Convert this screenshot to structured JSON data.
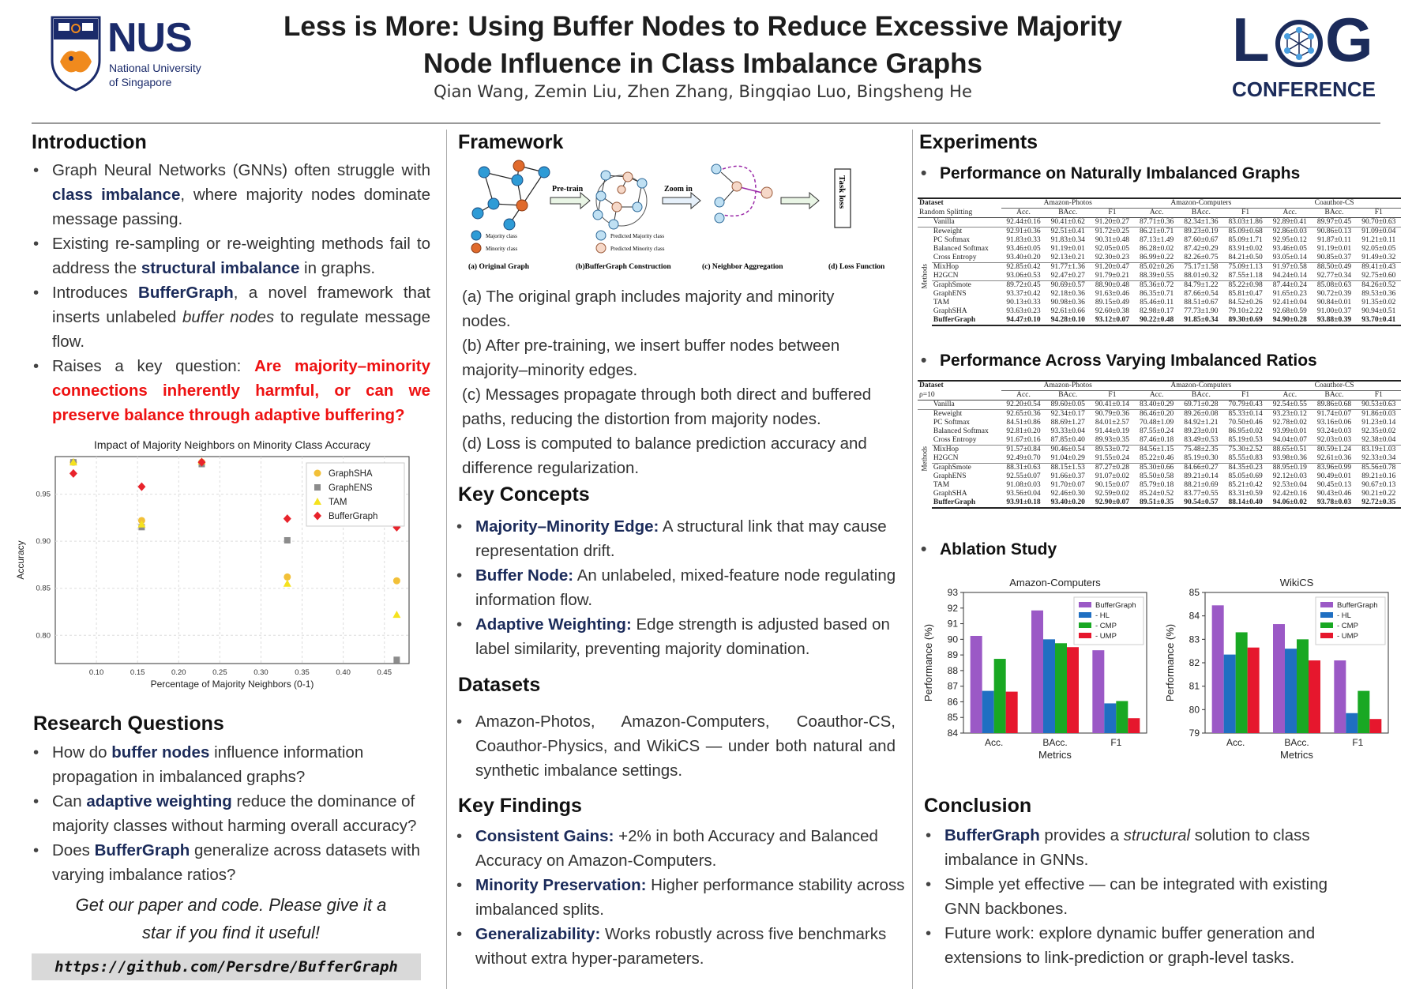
{
  "header": {
    "logo_left": {
      "acronym": "NUS",
      "line1": "National University",
      "line2": "of Singapore"
    },
    "title_line1": "Less is More: Using Buffer Nodes to Reduce Excessive Majority",
    "title_line2": "Node Influence in Class Imbalance Graphs",
    "authors": "Qian Wang, Zemin Liu, Zhen Zhang, Bingqiao Luo, Bingsheng He",
    "logo_right": {
      "text1": "L",
      "text2": "G",
      "sub": "CONFERENCE"
    }
  },
  "intro": {
    "heading": "Introduction",
    "b1_pre": "Graph Neural Networks (GNNs) often struggle with ",
    "b1_bold": "class imbalance",
    "b1_post": ", where majority nodes dominate message passing.",
    "b2_pre": "Existing re-sampling or re-weighting methods fail to address the ",
    "b2_bold": "structural imbalance",
    "b2_post": " in graphs.",
    "b3_pre": "Introduces ",
    "b3_bold": "BufferGraph",
    "b3_mid": ", a novel framework that inserts unlabeled ",
    "b3_ital": "buffer nodes",
    "b3_post": " to regulate message flow.",
    "b4_pre": "Raises a key question: ",
    "b4_red": "Are majority–minority connections inherently harmful, or can we preserve balance through adaptive buffering?"
  },
  "scatter_chart": {
    "chart_data": {
      "type": "scatter",
      "title": "Impact of Majority Neighbors on Minority Class Accuracy",
      "xlabel": "Percentage of Majority Neighbors (0-1)",
      "ylabel": "Accuracy",
      "xlim": [
        0.05,
        0.48
      ],
      "ylim": [
        0.77,
        0.99
      ],
      "xticks": [
        "0.10",
        "0.15",
        "0.20",
        "0.25",
        "0.30",
        "0.35",
        "0.40",
        "0.45"
      ],
      "yticks": [
        "0.80",
        "0.85",
        "0.90",
        "0.95"
      ],
      "x": [
        0.072,
        0.155,
        0.228,
        0.332,
        0.465
      ],
      "series": [
        {
          "name": "GraphSHA",
          "color": "#f2c038",
          "marker": "circle",
          "values": [
            0.984,
            0.922,
            0.984,
            0.862,
            0.858
          ]
        },
        {
          "name": "GraphENS",
          "color": "#8c8c8c",
          "marker": "square",
          "values": [
            0.984,
            0.915,
            0.982,
            0.901,
            0.774
          ]
        },
        {
          "name": "TAM",
          "color": "#f5e21e",
          "marker": "triangle",
          "values": [
            0.984,
            0.918,
            0.985,
            0.855,
            0.822
          ]
        },
        {
          "name": "BufferGraph",
          "color": "#e8232b",
          "marker": "diamond",
          "values": [
            0.972,
            0.958,
            0.984,
            0.924,
            0.915
          ]
        }
      ]
    }
  },
  "rq": {
    "heading": "Research Questions",
    "q1_pre": "How do ",
    "q1_bold": "buffer nodes",
    "q1_post": " influence information propagation in imbalanced graphs?",
    "q2_pre": "Can ",
    "q2_bold": "adaptive weighting",
    "q2_post": " reduce the dominance of majority classes without harming overall accuracy?",
    "q3_pre": "Does ",
    "q3_bold": "BufferGraph",
    "q3_post": " generalize across datasets with varying imbalance ratios?",
    "cta_line1": "Get our paper and code. Please give it a",
    "cta_line2": "star if you find it useful!",
    "url": "https://github.com/Persdre/BufferGraph"
  },
  "framework": {
    "heading": "Framework",
    "fig": {
      "pretrain": "Pre-train",
      "zoomin": "Zoom in",
      "taskloss": "Task loss",
      "legend_maj": "Majority class",
      "legend_min": "Minority class",
      "legend_pmaj": "Predicted Majority class",
      "legend_pmin": "Predicted Minority class",
      "cap_a": "(a) Original Graph",
      "cap_b": "(b)BufferGraph Construction",
      "cap_c": "(c) Neighbor Aggregation",
      "cap_d": "(d) Loss Function"
    },
    "pa": "(a) The original graph includes majority and minority nodes.",
    "pb": "(b) After pre-training, we insert buffer nodes between majority–minority edges.",
    "pc": "(c) Messages propagate through both direct and buffered paths, reducing the distortion from majority nodes.",
    "pd": "(d) Loss is computed to balance prediction accuracy and difference regularization."
  },
  "concepts": {
    "heading": "Key Concepts",
    "c1_bold": "Majority–Minority Edge:",
    "c1_text": " A structural link that may cause representation drift.",
    "c2_bold": "Buffer Node:",
    "c2_text": " An unlabeled, mixed-feature node regulating information flow.",
    "c3_bold": "Adaptive Weighting:",
    "c3_text": " Edge strength is adjusted based on label similarity, preventing majority domination."
  },
  "datasets": {
    "heading": "Datasets",
    "text": "Amazon-Photos, Amazon-Computers, Coauthor-CS, Coauthor-Physics, and WikiCS — under both natural and synthetic imbalance settings."
  },
  "findings": {
    "heading": "Key Findings",
    "f1_bold": "Consistent Gains:",
    "f1_text": " +2% in both Accuracy and Balanced Accuracy on Amazon-Computers.",
    "f2_bold": "Minority Preservation:",
    "f2_text": " Higher performance stability across imbalanced splits.",
    "f3_bold": "Generalizability:",
    "f3_text": " Works robustly across five benchmarks without extra hyper-parameters."
  },
  "experiments": {
    "heading": "Experiments",
    "sub1": "Performance on Naturally Imbalanced Graphs",
    "sub2": "Performance Across Varying Imbalanced Ratios",
    "sub3": "Ablation Study",
    "methods_label": "Methods",
    "table1": {
      "h_dataset": "Dataset",
      "h_setting": "Random Splitting",
      "datasets": [
        "Amazon-Photos",
        "Amazon-Computers",
        "Coauthor-CS"
      ],
      "metrics": [
        "Acc.",
        "BAcc.",
        "F1",
        "Acc.",
        "BAcc.",
        "F1",
        "Acc.",
        "BAcc.",
        "F1"
      ],
      "rows": [
        [
          "Vanilla",
          "92.44±0.16",
          "90.41±0.62",
          "91.20±0.27",
          "87.71±0.36",
          "82.34±1.36",
          "83.03±1.86",
          "92.89±0.41",
          "89.97±0.45",
          "90.70±0.63"
        ],
        [
          "Reweight",
          "92.91±0.36",
          "92.51±0.41",
          "91.72±0.25",
          "86.21±0.71",
          "89.23±0.19",
          "85.09±0.68",
          "92.86±0.03",
          "90.86±0.13",
          "91.09±0.04"
        ],
        [
          "PC Softmax",
          "91.83±0.33",
          "91.83±0.34",
          "90.31±0.48",
          "87.13±1.49",
          "87.60±0.67",
          "85.09±1.71",
          "92.95±0.12",
          "91.87±0.11",
          "91.21±0.11"
        ],
        [
          "Balanced Softmax",
          "93.46±0.05",
          "91.19±0.01",
          "92.05±0.05",
          "86.28±0.02",
          "87.42±0.29",
          "83.91±0.02",
          "93.46±0.05",
          "91.19±0.01",
          "92.05±0.05"
        ],
        [
          "Cross Entropy",
          "93.40±0.20",
          "92.13±0.21",
          "92.30±0.23",
          "86.99±0.22",
          "82.26±0.75",
          "84.21±0.50",
          "93.05±0.14",
          "90.85±0.37",
          "91.49±0.32"
        ],
        [
          "MixHop",
          "92.85±0.42",
          "91.77±1.36",
          "91.20±0.47",
          "85.02±0.26",
          "75.17±1.58",
          "75.09±1.13",
          "91.97±0.58",
          "88.50±0.49",
          "89.41±0.43"
        ],
        [
          "H2GCN",
          "93.06±0.53",
          "92.47±0.27",
          "91.79±0.21",
          "88.39±0.55",
          "88.01±0.32",
          "87.55±1.18",
          "94.24±0.14",
          "92.77±0.34",
          "92.75±0.60"
        ],
        [
          "GraphSmote",
          "89.72±0.45",
          "90.69±0.57",
          "88.90±0.48",
          "85.36±0.72",
          "84.79±1.22",
          "85.22±0.98",
          "87.44±0.24",
          "85.08±0.63",
          "84.26±0.52"
        ],
        [
          "GraphENS",
          "93.37±0.42",
          "92.18±0.36",
          "91.63±0.46",
          "86.35±0.71",
          "87.66±0.54",
          "85.81±0.47",
          "91.65±0.23",
          "90.72±0.39",
          "89.53±0.36"
        ],
        [
          "TAM",
          "90.13±0.33",
          "90.98±0.36",
          "89.15±0.49",
          "85.46±0.11",
          "88.51±0.67",
          "84.52±0.26",
          "92.41±0.04",
          "90.84±0.01",
          "91.35±0.02"
        ],
        [
          "GraphSHA",
          "93.63±0.23",
          "92.61±0.66",
          "92.60±0.38",
          "82.98±0.17",
          "77.73±1.90",
          "79.10±2.22",
          "92.68±0.59",
          "91.00±0.37",
          "90.94±0.51"
        ],
        [
          "BufferGraph",
          "94.47±0.10",
          "94.28±0.10",
          "93.12±0.07",
          "90.22±0.48",
          "91.85±0.34",
          "89.30±0.69",
          "94.90±0.28",
          "93.88±0.39",
          "93.70±0.41"
        ]
      ]
    },
    "table2": {
      "h_dataset": "Dataset",
      "h_setting": "ρ=10",
      "datasets": [
        "Amazon-Photos",
        "Amazon-Computers",
        "Coauthor-CS"
      ],
      "metrics": [
        "Acc.",
        "BAcc.",
        "F1",
        "Acc.",
        "BAcc.",
        "F1",
        "Acc.",
        "BAcc.",
        "F1"
      ],
      "rows": [
        [
          "Vanilla",
          "92.20±0.54",
          "89.60±0.05",
          "90.41±0.14",
          "83.40±0.29",
          "69.71±0.28",
          "70.79±0.43",
          "92.54±0.55",
          "89.86±0.68",
          "90.53±0.63"
        ],
        [
          "Reweight",
          "92.65±0.36",
          "92.34±0.17",
          "90.79±0.36",
          "86.46±0.20",
          "89.26±0.08",
          "85.33±0.14",
          "93.23±0.12",
          "91.74±0.07",
          "91.86±0.03"
        ],
        [
          "PC Softmax",
          "84.51±0.86",
          "88.69±1.27",
          "84.01±2.57",
          "70.48±1.09",
          "84.92±1.21",
          "70.50±0.46",
          "92.78±0.02",
          "93.16±0.06",
          "91.23±0.14"
        ],
        [
          "Balanced Softmax",
          "92.81±0.20",
          "93.33±0.04",
          "91.44±0.19",
          "87.55±0.24",
          "89.23±0.01",
          "86.95±0.02",
          "93.99±0.01",
          "93.24±0.03",
          "92.35±0.02"
        ],
        [
          "Cross Entropy",
          "91.67±0.16",
          "87.85±0.40",
          "89.93±0.35",
          "87.46±0.18",
          "83.49±0.53",
          "85.19±0.53",
          "94.04±0.07",
          "92.03±0.03",
          "92.38±0.04"
        ],
        [
          "MixHop",
          "91.57±0.84",
          "90.46±0.54",
          "89.53±0.72",
          "84.56±1.15",
          "75.48±2.35",
          "75.30±2.52",
          "88.65±0.51",
          "80.59±1.24",
          "83.19±1.03"
        ],
        [
          "H2GCN",
          "92.49±0.70",
          "91.04±0.29",
          "91.55±0.24",
          "85.22±0.46",
          "85.19±0.30",
          "85.55±0.83",
          "93.98±0.36",
          "92.61±0.36",
          "92.33±0.34"
        ],
        [
          "GraphSmote",
          "88.31±0.63",
          "88.15±1.53",
          "87.27±0.28",
          "85.30±0.66",
          "84.66±0.27",
          "84.35±0.23",
          "88.95±0.19",
          "83.96±0.99",
          "85.56±0.78"
        ],
        [
          "GraphENS",
          "92.55±0.07",
          "91.66±0.37",
          "91.07±0.02",
          "85.50±0.58",
          "89.21±0.14",
          "85.05±0.69",
          "92.12±0.03",
          "90.49±0.01",
          "89.21±0.16"
        ],
        [
          "TAM",
          "91.08±0.03",
          "91.70±0.07",
          "90.15±0.07",
          "85.79±0.18",
          "88.21±0.69",
          "85.21±0.42",
          "92.53±0.04",
          "90.45±0.13",
          "90.67±0.13"
        ],
        [
          "GraphSHA",
          "93.56±0.04",
          "92.46±0.30",
          "92.59±0.02",
          "85.24±0.52",
          "83.77±0.55",
          "83.31±0.59",
          "92.42±0.16",
          "90.43±0.46",
          "90.21±0.22"
        ],
        [
          "BufferGraph",
          "93.91±0.18",
          "93.40±0.20",
          "92.90±0.07",
          "89.51±0.35",
          "90.54±0.57",
          "88.14±0.40",
          "94.06±0.02",
          "93.78±0.03",
          "92.72±0.35"
        ]
      ]
    },
    "ablation": {
      "chart_data": [
        {
          "type": "bar",
          "title": "Amazon-Computers",
          "xlabel": "Metrics",
          "ylabel": "Performance (%)",
          "ylim": [
            84,
            93
          ],
          "yticks": [
            "84",
            "85",
            "86",
            "87",
            "88",
            "89",
            "90",
            "91",
            "92",
            "93"
          ],
          "categories": [
            "Acc.",
            "BAcc.",
            "F1"
          ],
          "series": [
            {
              "name": "BufferGraph",
              "color": "#9b59c6",
              "values": [
                90.22,
                91.85,
                89.3
              ]
            },
            {
              "name": "- HL",
              "color": "#1f6fc2",
              "values": [
                86.7,
                90.0,
                85.9
              ]
            },
            {
              "name": "- CMP",
              "color": "#19a823",
              "values": [
                88.75,
                89.75,
                86.05
              ]
            },
            {
              "name": "- UMP",
              "color": "#e6172d",
              "values": [
                86.65,
                89.5,
                84.95
              ]
            }
          ]
        },
        {
          "type": "bar",
          "title": "WikiCS",
          "xlabel": "Metrics",
          "ylabel": "Performance (%)",
          "ylim": [
            79,
            85
          ],
          "yticks": [
            "79",
            "80",
            "81",
            "82",
            "83",
            "84",
            "85"
          ],
          "categories": [
            "Acc.",
            "BAcc.",
            "F1"
          ],
          "series": [
            {
              "name": "BufferGraph",
              "color": "#9b59c6",
              "values": [
                84.45,
                83.65,
                82.1
              ]
            },
            {
              "name": "- HL",
              "color": "#1f6fc2",
              "values": [
                82.35,
                82.6,
                79.85
              ]
            },
            {
              "name": "- CMP",
              "color": "#19a823",
              "values": [
                83.3,
                83.0,
                80.8
              ]
            },
            {
              "name": "- UMP",
              "color": "#e6172d",
              "values": [
                82.65,
                82.1,
                79.6
              ]
            }
          ]
        }
      ]
    }
  },
  "conclusion": {
    "heading": "Conclusion",
    "c1_bold": "BufferGraph",
    "c1_mid": " provides a ",
    "c1_ital": "structural",
    "c1_post": " solution to class imbalance in GNNs.",
    "c2": "Simple yet effective — can be integrated with existing GNN backbones.",
    "c3": "Future work: explore dynamic buffer generation and extensions to link-prediction or graph-level tasks."
  }
}
